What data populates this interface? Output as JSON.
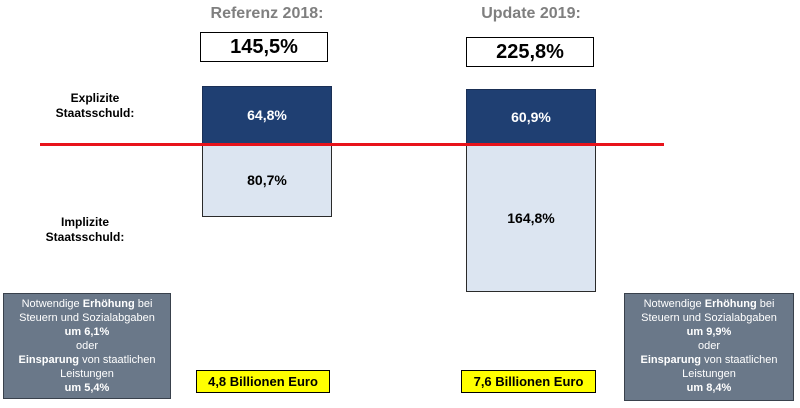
{
  "chart_data": {
    "type": "bar",
    "categories": [
      "Referenz 2018:",
      "Update 2019:"
    ],
    "totals": [
      "145,5%",
      "225,8%"
    ],
    "series": [
      {
        "name": "Explizite Staatsschuld:",
        "values": [
          64.8,
          60.9
        ],
        "labels": [
          "64,8%",
          "60,9%"
        ],
        "color": "#1f3f72"
      },
      {
        "name": "Implizite Staatsschuld:",
        "values": [
          80.7,
          164.8
        ],
        "labels": [
          "80,7%",
          "164,8%"
        ],
        "color": "#dce5f1"
      }
    ]
  },
  "labels": {
    "explicit_line1": "Explizite",
    "explicit_line2": "Staatsschuld:",
    "implicit_line1": "Implizite",
    "implicit_line2": "Staatsschuld:"
  },
  "info_left": {
    "l1a": "Notwendige ",
    "l1b": "Erhöhung",
    "l1c": " bei",
    "l2": "Steuern und Sozialabgaben",
    "l3": "um 6,1%",
    "l4": "oder",
    "l5a": "Einsparung",
    "l5b": " von staatlichen",
    "l6": "Leistungen",
    "l7": "um 5,4%"
  },
  "info_right": {
    "l1a": "Notwendige ",
    "l1b": "Erhöhung",
    "l1c": " bei",
    "l2": "Steuern und Sozialabgaben",
    "l3": "um 9,9%",
    "l4": "oder",
    "l5a": "Einsparung",
    "l5b": " von staatlichen",
    "l6": "Leistungen",
    "l7": "um 8,4%"
  },
  "euro": [
    "4,8 Billionen Euro",
    "7,6 Billionen Euro"
  ],
  "colors": {
    "explicit": "#1f3f72",
    "implicit": "#dce5f1",
    "baseline": "#e8131b",
    "highlight": "#ffff00",
    "infobox": "#6a7889"
  }
}
